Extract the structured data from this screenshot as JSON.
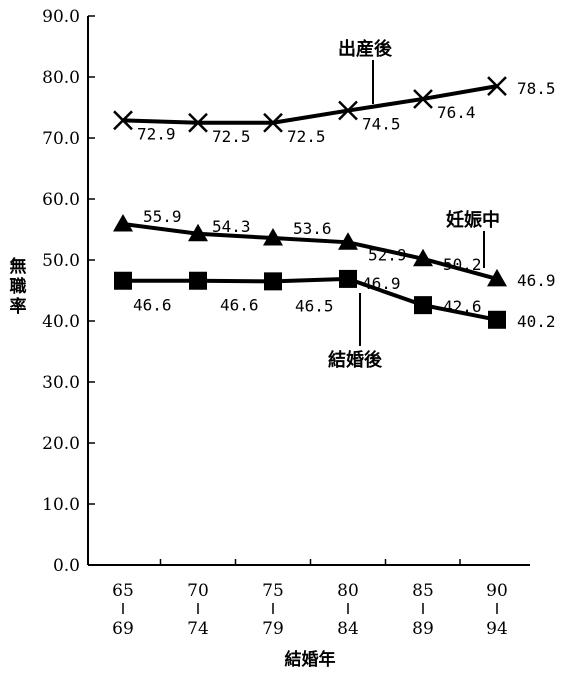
{
  "chart_data": {
    "type": "line",
    "ylabel": "無職率",
    "xlabel": "結婚年",
    "ylim": [
      0,
      90
    ],
    "yticks": [
      "0.0",
      "10.0",
      "20.0",
      "30.0",
      "40.0",
      "50.0",
      "60.0",
      "70.0",
      "80.0",
      "90.0"
    ],
    "categories": [
      {
        "top": "65",
        "bottom": "69"
      },
      {
        "top": "70",
        "bottom": "74"
      },
      {
        "top": "75",
        "bottom": "79"
      },
      {
        "top": "80",
        "bottom": "84"
      },
      {
        "top": "85",
        "bottom": "89"
      },
      {
        "top": "90",
        "bottom": "94"
      }
    ],
    "series": [
      {
        "name": "出産後",
        "marker": "x",
        "values": [
          72.9,
          72.5,
          72.5,
          74.5,
          76.4,
          78.5
        ],
        "labels": [
          "72.9",
          "72.5",
          "72.5",
          "74.5",
          "76.4",
          "78.5"
        ]
      },
      {
        "name": "妊娠中",
        "marker": "triangle",
        "values": [
          55.9,
          54.3,
          53.6,
          52.9,
          50.2,
          46.9
        ],
        "labels": [
          "55.9",
          "54.3",
          "53.6",
          "52.9",
          "50.2",
          "46.9"
        ]
      },
      {
        "name": "結婚後",
        "marker": "square",
        "values": [
          46.6,
          46.6,
          46.5,
          46.9,
          42.6,
          40.2
        ],
        "labels": [
          "46.6",
          "46.6",
          "46.5",
          "46.9",
          "42.6",
          "40.2"
        ]
      }
    ],
    "grid": false,
    "colors": {
      "line": "#000000",
      "background": "#ffffff"
    }
  }
}
